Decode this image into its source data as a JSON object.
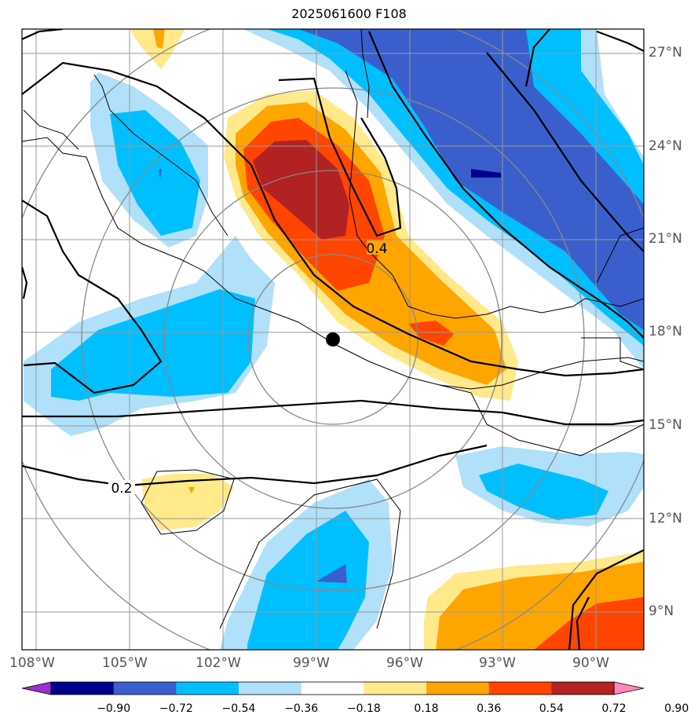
{
  "title": "2025061600 F108",
  "lon_labels": [
    "108°W",
    "105°W",
    "102°W",
    "99°W",
    "96°W",
    "93°W",
    "90°W"
  ],
  "lat_labels": [
    "27°N",
    "24°N",
    "21°N",
    "18°N",
    "15°N",
    "12°N",
    "9°N"
  ],
  "contour_labels": [
    "0.4",
    "0.2"
  ],
  "colorbar": {
    "ticks": [
      "−0.90",
      "−0.72",
      "−0.54",
      "−0.36",
      "−0.18",
      "0.18",
      "0.36",
      "0.54",
      "0.72",
      "0.90"
    ],
    "colors": [
      "#9b30d0",
      "#00008b",
      "#3a5fcd",
      "#00bfff",
      "#b0e0fa",
      "#ffffff",
      "#ffe98a",
      "#ffa500",
      "#ff4500",
      "#b22222",
      "#ff88b8"
    ]
  },
  "storm_marker": "center-dot"
}
